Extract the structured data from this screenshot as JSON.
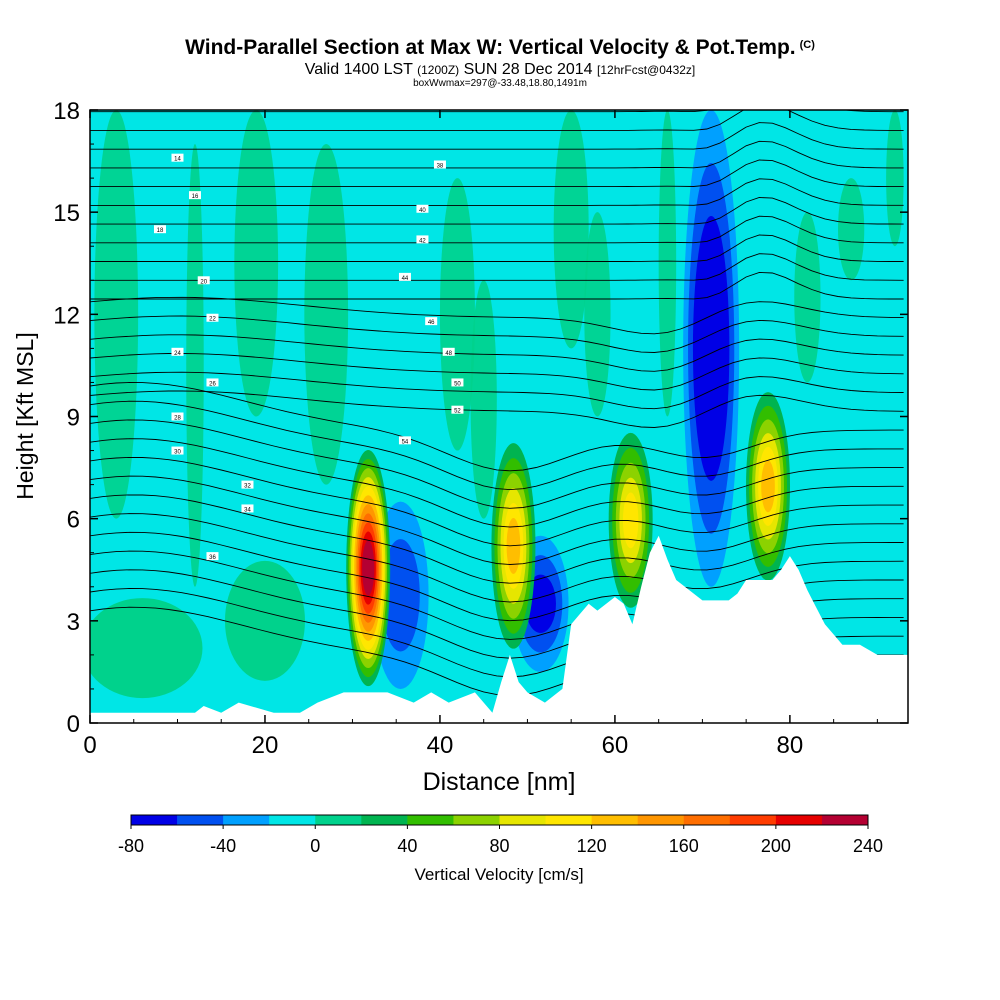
{
  "header": {
    "title": "Wind-Parallel Section at Max W: Vertical Velocity & Pot.Temp.",
    "copyright": "(C)",
    "valid_prefix": "Valid 1400 LST",
    "valid_utc": "(1200Z)",
    "valid_date": "SUN 28 Dec 2014",
    "forecast": "[12hrFcst@0432z]",
    "boxinfo": "boxWwmax=297@-33.48,18.80,1491m"
  },
  "chart_data": {
    "type": "heatmap",
    "title": "Wind-Parallel Section at Max W: Vertical Velocity & Pot.Temp.",
    "xlabel": "Distance [nm]",
    "ylabel": "Height [Kft MSL]",
    "xlim": [
      0,
      93.5
    ],
    "ylim": [
      0,
      18
    ],
    "xticks": [
      0,
      20,
      40,
      60,
      80
    ],
    "yticks": [
      0,
      3,
      6,
      9,
      12,
      15,
      18
    ],
    "colorbar": {
      "label": "Vertical Velocity [cm/s]",
      "tick_labels": [
        "-80",
        "-40",
        "0",
        "40",
        "80",
        "120",
        "160",
        "200",
        "240"
      ],
      "levels": [
        -80,
        -60,
        -40,
        -20,
        0,
        20,
        40,
        60,
        80,
        100,
        120,
        140,
        160,
        180,
        200,
        220,
        240
      ],
      "colors": [
        "#0000e6",
        "#0050f0",
        "#00a0ff",
        "#00e6e6",
        "#00d28c",
        "#00b450",
        "#32be00",
        "#8cd200",
        "#e6e600",
        "#ffe600",
        "#ffbe00",
        "#ff9600",
        "#ff6e00",
        "#ff3c00",
        "#e60000",
        "#b40032"
      ],
      "background_value": 0
    },
    "updraft_cores": [
      {
        "x": 31.8,
        "y_bottom": 1.2,
        "y_top": 7.9,
        "peak_cm_s": 240
      },
      {
        "x": 48.4,
        "y_bottom": 2.3,
        "y_top": 8.1,
        "peak_cm_s": 120
      },
      {
        "x": 61.8,
        "y_bottom": 3.5,
        "y_top": 8.4,
        "peak_cm_s": 110
      },
      {
        "x": 77.5,
        "y_bottom": 4.3,
        "y_top": 9.6,
        "peak_cm_s": 120
      }
    ],
    "downdraft_regions": [
      {
        "x": 35.5,
        "y_bottom": 1.0,
        "y_top": 6.5,
        "min_cm_s": -40
      },
      {
        "x": 51.5,
        "y_bottom": 1.5,
        "y_top": 5.5,
        "min_cm_s": -60
      },
      {
        "x": 71.0,
        "y_bottom": 4.0,
        "y_top": 18.0,
        "min_cm_s": -80
      }
    ],
    "terrain": {
      "x": [
        0,
        12,
        13,
        15,
        17,
        21,
        24,
        26,
        29,
        31,
        34,
        37,
        39,
        41,
        44,
        46,
        47,
        48,
        49,
        50,
        52,
        54,
        55,
        56,
        57,
        58,
        60,
        61,
        62,
        63,
        64,
        65,
        66,
        67,
        68,
        70,
        72,
        73,
        74,
        75,
        78,
        79,
        80,
        81,
        82,
        83,
        84,
        86,
        88,
        90,
        93.5
      ],
      "height": [
        0.3,
        0.3,
        0.5,
        0.3,
        0.6,
        0.3,
        0.3,
        0.6,
        0.9,
        0.9,
        0.9,
        0.6,
        0.9,
        0.6,
        0.9,
        0.3,
        1.2,
        2.0,
        1.2,
        0.9,
        0.6,
        1.0,
        2.9,
        3.2,
        3.5,
        3.3,
        3.7,
        3.5,
        2.9,
        4.0,
        5.0,
        5.5,
        4.8,
        4.2,
        4.0,
        3.6,
        3.6,
        3.6,
        3.8,
        4.2,
        4.2,
        4.5,
        4.9,
        4.5,
        3.9,
        3.4,
        2.9,
        2.3,
        2.3,
        2.0,
        2.0
      ]
    },
    "potential_temperature_contour_labels": [
      "14",
      "16",
      "18",
      "20",
      "22",
      "24",
      "26",
      "28",
      "30",
      "32",
      "34",
      "36",
      "38",
      "40",
      "42",
      "44",
      "46",
      "48",
      "50",
      "52",
      "54"
    ]
  }
}
